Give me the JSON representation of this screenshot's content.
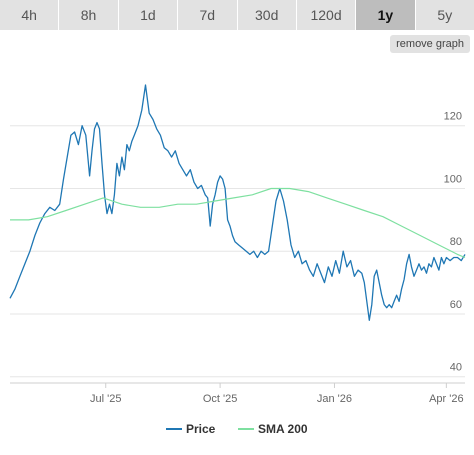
{
  "tabs": [
    {
      "label": "4h",
      "active": false
    },
    {
      "label": "8h",
      "active": false
    },
    {
      "label": "1d",
      "active": false
    },
    {
      "label": "7d",
      "active": false
    },
    {
      "label": "30d",
      "active": false
    },
    {
      "label": "120d",
      "active": false
    },
    {
      "label": "1y",
      "active": true
    },
    {
      "label": "5y",
      "active": false
    }
  ],
  "remove_graph_label": "remove graph",
  "chart_data": {
    "type": "line",
    "title": "",
    "xlabel": "",
    "ylabel": "",
    "x_ticks": [
      {
        "label": "Jul '25",
        "day": 77
      },
      {
        "label": "Oct '25",
        "day": 169
      },
      {
        "label": "Jan '26",
        "day": 261
      },
      {
        "label": "Apr '26",
        "day": 351
      }
    ],
    "x_range": [
      0,
      366
    ],
    "y_ticks": [
      40,
      60,
      80,
      100,
      120
    ],
    "ylim": [
      38,
      140
    ],
    "grid": true,
    "legend_position": "bottom-center",
    "colors": {
      "price": "#1f77b4",
      "sma": "#7ee0a0"
    },
    "series": [
      {
        "name": "Price",
        "points": [
          [
            0,
            65
          ],
          [
            4,
            68
          ],
          [
            8,
            72
          ],
          [
            12,
            76
          ],
          [
            16,
            80
          ],
          [
            20,
            85
          ],
          [
            24,
            89
          ],
          [
            28,
            92
          ],
          [
            32,
            94
          ],
          [
            36,
            93
          ],
          [
            40,
            95
          ],
          [
            43,
            103
          ],
          [
            46,
            110
          ],
          [
            49,
            117
          ],
          [
            52,
            118
          ],
          [
            55,
            114
          ],
          [
            58,
            120
          ],
          [
            61,
            117
          ],
          [
            64,
            104
          ],
          [
            66,
            112
          ],
          [
            68,
            119
          ],
          [
            70,
            121
          ],
          [
            72,
            119
          ],
          [
            74,
            108
          ],
          [
            76,
            98
          ],
          [
            78,
            92
          ],
          [
            80,
            95
          ],
          [
            82,
            92
          ],
          [
            84,
            98
          ],
          [
            86,
            108
          ],
          [
            88,
            104
          ],
          [
            90,
            110
          ],
          [
            92,
            106
          ],
          [
            94,
            114
          ],
          [
            96,
            112
          ],
          [
            98,
            115
          ],
          [
            100,
            117
          ],
          [
            103,
            120
          ],
          [
            106,
            125
          ],
          [
            109,
            133
          ],
          [
            112,
            124
          ],
          [
            115,
            122
          ],
          [
            118,
            119
          ],
          [
            121,
            117
          ],
          [
            124,
            113
          ],
          [
            127,
            112
          ],
          [
            130,
            110
          ],
          [
            133,
            112
          ],
          [
            136,
            108
          ],
          [
            139,
            106
          ],
          [
            142,
            104
          ],
          [
            145,
            106
          ],
          [
            148,
            102
          ],
          [
            151,
            100
          ],
          [
            154,
            101
          ],
          [
            157,
            98
          ],
          [
            159,
            97
          ],
          [
            161,
            88
          ],
          [
            163,
            95
          ],
          [
            165,
            98
          ],
          [
            167,
            102
          ],
          [
            169,
            104
          ],
          [
            171,
            103
          ],
          [
            173,
            100
          ],
          [
            175,
            90
          ],
          [
            177,
            88
          ],
          [
            179,
            85
          ],
          [
            181,
            83
          ],
          [
            184,
            82
          ],
          [
            187,
            81
          ],
          [
            190,
            80
          ],
          [
            193,
            79
          ],
          [
            196,
            80
          ],
          [
            199,
            78
          ],
          [
            202,
            80
          ],
          [
            205,
            79
          ],
          [
            208,
            80
          ],
          [
            211,
            88
          ],
          [
            214,
            96
          ],
          [
            217,
            100
          ],
          [
            220,
            96
          ],
          [
            223,
            90
          ],
          [
            226,
            82
          ],
          [
            229,
            78
          ],
          [
            232,
            80
          ],
          [
            235,
            76
          ],
          [
            238,
            77
          ],
          [
            241,
            74
          ],
          [
            244,
            72
          ],
          [
            247,
            76
          ],
          [
            250,
            73
          ],
          [
            253,
            70
          ],
          [
            256,
            75
          ],
          [
            259,
            72
          ],
          [
            262,
            77
          ],
          [
            265,
            73
          ],
          [
            268,
            80
          ],
          [
            271,
            75
          ],
          [
            274,
            77
          ],
          [
            277,
            72
          ],
          [
            280,
            74
          ],
          [
            283,
            73
          ],
          [
            285,
            70
          ],
          [
            287,
            64
          ],
          [
            289,
            58
          ],
          [
            291,
            63
          ],
          [
            293,
            72
          ],
          [
            295,
            74
          ],
          [
            297,
            70
          ],
          [
            299,
            66
          ],
          [
            301,
            63
          ],
          [
            303,
            62
          ],
          [
            305,
            63
          ],
          [
            307,
            62
          ],
          [
            309,
            64
          ],
          [
            311,
            66
          ],
          [
            313,
            64
          ],
          [
            315,
            68
          ],
          [
            317,
            71
          ],
          [
            319,
            76
          ],
          [
            321,
            79
          ],
          [
            323,
            75
          ],
          [
            325,
            72
          ],
          [
            327,
            74
          ],
          [
            329,
            76
          ],
          [
            331,
            74
          ],
          [
            333,
            75
          ],
          [
            335,
            73
          ],
          [
            337,
            76
          ],
          [
            339,
            75
          ],
          [
            341,
            78
          ],
          [
            343,
            76
          ],
          [
            345,
            74
          ],
          [
            347,
            78
          ],
          [
            349,
            76
          ],
          [
            351,
            78
          ],
          [
            354,
            77
          ],
          [
            357,
            78
          ],
          [
            360,
            78
          ],
          [
            363,
            77
          ],
          [
            366,
            79
          ]
        ]
      },
      {
        "name": "SMA 200",
        "points": [
          [
            0,
            90
          ],
          [
            15,
            90
          ],
          [
            30,
            91
          ],
          [
            45,
            93
          ],
          [
            60,
            95
          ],
          [
            75,
            97
          ],
          [
            90,
            95
          ],
          [
            105,
            94
          ],
          [
            120,
            94
          ],
          [
            135,
            95
          ],
          [
            150,
            95
          ],
          [
            165,
            96
          ],
          [
            180,
            97
          ],
          [
            195,
            98
          ],
          [
            210,
            100
          ],
          [
            225,
            100
          ],
          [
            240,
            99
          ],
          [
            255,
            97
          ],
          [
            270,
            95
          ],
          [
            285,
            93
          ],
          [
            300,
            91
          ],
          [
            315,
            88
          ],
          [
            330,
            85
          ],
          [
            345,
            82
          ],
          [
            360,
            79
          ],
          [
            366,
            78
          ]
        ]
      }
    ]
  }
}
